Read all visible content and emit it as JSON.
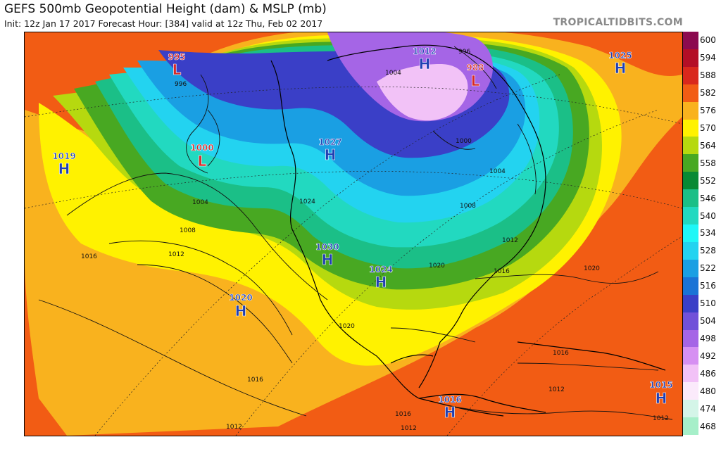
{
  "title": "GEFS 500mb Geopotential Height (dam) & MSLP (mb)",
  "subtitle": "Init: 12z Jan 17 2017   Forecast Hour: [384]   valid at 12z Thu, Feb 02 2017",
  "brand": "TROPICALTIDBITS.COM",
  "colorbar": [
    {
      "value": "600",
      "color": "#8b0a4f"
    },
    {
      "value": "594",
      "color": "#b40e26"
    },
    {
      "value": "588",
      "color": "#d9281c"
    },
    {
      "value": "582",
      "color": "#f25c14"
    },
    {
      "value": "576",
      "color": "#f9b21e"
    },
    {
      "value": "570",
      "color": "#fff200"
    },
    {
      "value": "564",
      "color": "#b6d90f"
    },
    {
      "value": "558",
      "color": "#48a822"
    },
    {
      "value": "552",
      "color": "#088a34"
    },
    {
      "value": "546",
      "color": "#1bbf87"
    },
    {
      "value": "540",
      "color": "#22d9c0"
    },
    {
      "value": "534",
      "color": "#1ef7f7"
    },
    {
      "value": "528",
      "color": "#23d3f0"
    },
    {
      "value": "522",
      "color": "#1a9fe3"
    },
    {
      "value": "516",
      "color": "#1a73d6"
    },
    {
      "value": "510",
      "color": "#3a3fc7"
    },
    {
      "value": "504",
      "color": "#7151d9"
    },
    {
      "value": "498",
      "color": "#a565e6"
    },
    {
      "value": "492",
      "color": "#d690f2"
    },
    {
      "value": "486",
      "color": "#f2c2f7"
    },
    {
      "value": "480",
      "color": "#fbeafb"
    },
    {
      "value": "474",
      "color": "#d4f5e8"
    },
    {
      "value": "468",
      "color": "#a6efc9"
    }
  ],
  "pressure_centers": [
    {
      "type": "L",
      "value": "995",
      "color": "#d62828"
    },
    {
      "type": "L",
      "value": "988",
      "color": "#d62828"
    },
    {
      "type": "L",
      "value": "1000",
      "color": "#d62828"
    },
    {
      "type": "H",
      "value": "1012",
      "color": "#1f3fb3"
    },
    {
      "type": "H",
      "value": "1027",
      "color": "#1f3fb3"
    },
    {
      "type": "H",
      "value": "1025",
      "color": "#1f3fb3"
    },
    {
      "type": "H",
      "value": "1019",
      "color": "#1f3fb3"
    },
    {
      "type": "H",
      "value": "1030",
      "color": "#1f3fb3"
    },
    {
      "type": "H",
      "value": "1024",
      "color": "#1f3fb3"
    },
    {
      "type": "H",
      "value": "1020",
      "color": "#1f3fb3"
    },
    {
      "type": "H",
      "value": "1016",
      "color": "#1f3fb3"
    },
    {
      "type": "H",
      "value": "1015",
      "color": "#1f3fb3"
    }
  ],
  "isobar_labels": [
    "996",
    "996",
    "1004",
    "1004",
    "1000",
    "1004",
    "1008",
    "1008",
    "1012",
    "1016",
    "1024",
    "1012",
    "1016",
    "1020",
    "1020",
    "1020",
    "1016",
    "1016",
    "1016",
    "1012",
    "1012",
    "1012",
    "1012"
  ]
}
